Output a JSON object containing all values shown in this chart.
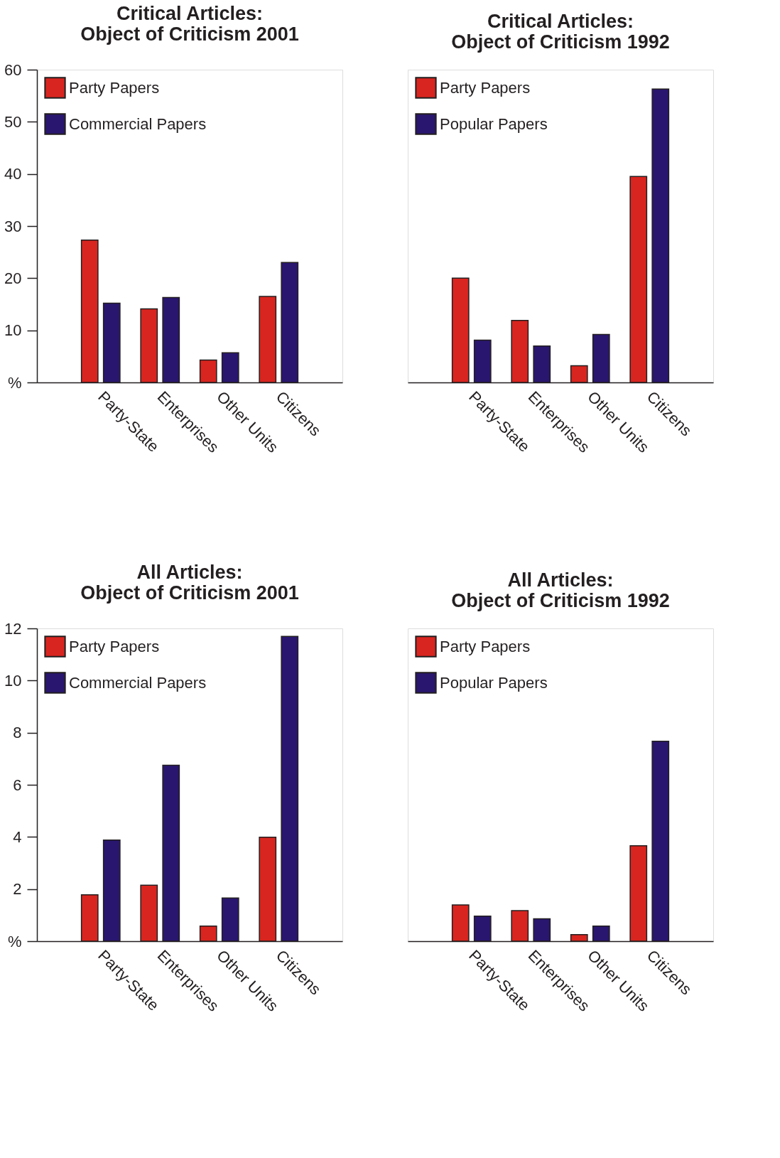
{
  "chart_data": [
    {
      "type": "bar",
      "title": "Critical Articles:\nObject of Criticism 2001",
      "categories": [
        "Party-State",
        "Enterprises",
        "Other Units",
        "Citizens"
      ],
      "series": [
        {
          "name": "Party Papers",
          "color": "#d9251f",
          "values": [
            27.3,
            14.1,
            4.3,
            16.5
          ]
        },
        {
          "name": "Commercial Papers",
          "color": "#29166f",
          "values": [
            15.2,
            16.3,
            5.7,
            23.0
          ]
        }
      ],
      "ylim": [
        0,
        60
      ],
      "yticks": [
        {
          "value": 0,
          "label": "%"
        },
        10,
        20,
        30,
        40,
        50,
        60
      ],
      "legend": "top left",
      "grid": false
    },
    {
      "type": "bar",
      "title": "Critical Articles:\nObject of Criticism 1992",
      "categories": [
        "Party-State",
        "Enterprises",
        "Other Units",
        "Citizens"
      ],
      "series": [
        {
          "name": "Party Papers",
          "color": "#d9251f",
          "values": [
            20.0,
            11.9,
            3.2,
            39.5
          ]
        },
        {
          "name": "Popular Papers",
          "color": "#29166f",
          "values": [
            8.1,
            7.0,
            9.2,
            56.3
          ]
        }
      ],
      "ylim": [
        0,
        60
      ],
      "tick_labels": "x",
      "legend": "top left",
      "grid": false
    },
    {
      "type": "bar",
      "title": "All Articles:\nObject of Criticism 2001",
      "categories": [
        "Party-State",
        "Enterprises",
        "Other Units",
        "Citizens"
      ],
      "series": [
        {
          "name": "Party Papers",
          "color": "#d9251f",
          "values": [
            1.78,
            2.15,
            0.58,
            3.99
          ]
        },
        {
          "name": "Commercial Papers",
          "color": "#29166f",
          "values": [
            3.88,
            6.75,
            1.66,
            11.69
          ]
        }
      ],
      "ylim": [
        0,
        12
      ],
      "yticks": [
        {
          "value": 0,
          "label": "%"
        },
        2,
        4,
        6,
        8,
        10,
        12
      ],
      "legend": "top left",
      "grid": false
    },
    {
      "type": "bar",
      "title": "All Articles:\nObject of Criticism 1992",
      "categories": [
        "Party-State",
        "Enterprises",
        "Other Units",
        "Citizens"
      ],
      "series": [
        {
          "name": "Party Papers",
          "color": "#d9251f",
          "values": [
            1.39,
            1.17,
            0.25,
            3.66
          ]
        },
        {
          "name": "Popular Papers",
          "color": "#29166f",
          "values": [
            0.96,
            0.86,
            0.58,
            7.67
          ]
        }
      ],
      "ylim": [
        0,
        12
      ],
      "tick_labels": "x",
      "legend": "top left",
      "grid": false
    }
  ]
}
